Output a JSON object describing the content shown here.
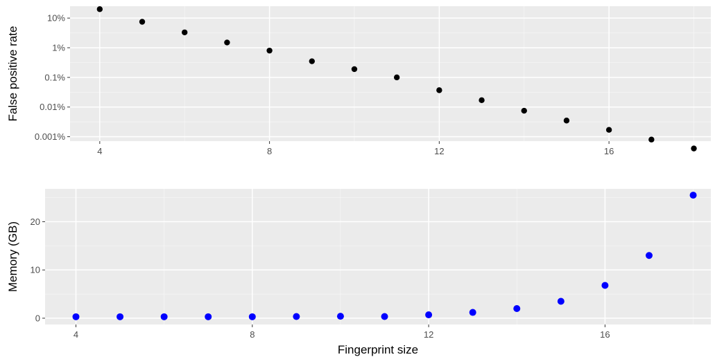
{
  "chart_data": [
    {
      "type": "scatter",
      "ylabel": "False positive rate",
      "xlabel": "",
      "y_scale": "log",
      "grid": true,
      "x_ticks": [
        4,
        8,
        12,
        16
      ],
      "y_ticks": [
        0.001,
        0.01,
        0.1,
        1,
        10
      ],
      "y_tick_labels": [
        "0.001%",
        "0.01%",
        "0.1%",
        "1%",
        "10%"
      ],
      "point_color": "#000000",
      "series": [
        {
          "x": [
            4,
            5,
            6,
            7,
            8,
            9,
            10,
            11,
            12,
            13,
            14,
            15,
            16,
            17,
            18
          ],
          "y": [
            20,
            7.5,
            3.3,
            1.5,
            0.8,
            0.35,
            0.19,
            0.1,
            0.037,
            0.017,
            0.0075,
            0.0035,
            0.0017,
            0.0008,
            0.0004
          ]
        }
      ]
    },
    {
      "type": "scatter",
      "ylabel": "Memory (GB)",
      "xlabel": "Fingerprint size",
      "y_scale": "linear",
      "grid": true,
      "x_ticks": [
        4,
        8,
        12,
        16
      ],
      "x_tick_labels": [
        "4",
        "8",
        "12",
        "16"
      ],
      "y_ticks": [
        0,
        10,
        20
      ],
      "y_tick_labels": [
        "0",
        "10",
        "20"
      ],
      "point_color": "#0000ff",
      "series": [
        {
          "x": [
            4,
            5,
            6,
            7,
            8,
            9,
            10,
            11,
            12,
            13,
            14,
            15,
            16,
            17,
            18
          ],
          "y": [
            0.3,
            0.3,
            0.3,
            0.3,
            0.3,
            0.35,
            0.4,
            0.35,
            0.7,
            1.2,
            2.0,
            3.5,
            6.8,
            13.0,
            25.5
          ]
        }
      ]
    }
  ]
}
